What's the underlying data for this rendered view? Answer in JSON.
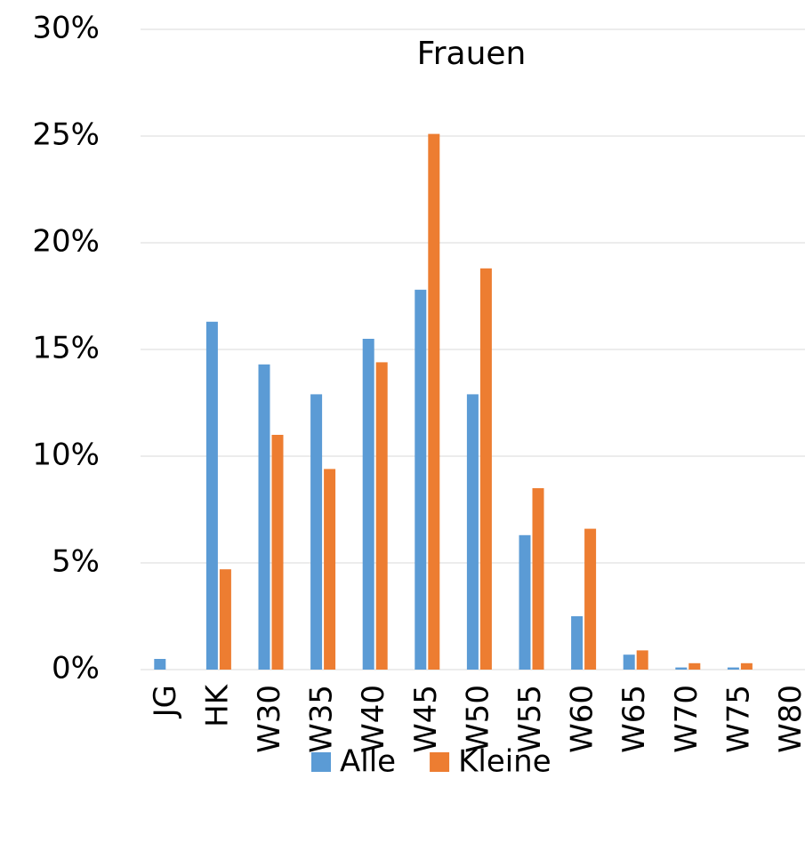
{
  "chart_data": {
    "type": "bar",
    "title": "Frauen",
    "categories": [
      "JG",
      "HK",
      "W30",
      "W35",
      "W40",
      "W45",
      "W50",
      "W55",
      "W60",
      "W65",
      "W70",
      "W75",
      "W80"
    ],
    "series": [
      {
        "name": "Alle",
        "color": "#5b9bd5",
        "values": [
          0.5,
          16.3,
          14.3,
          12.9,
          15.5,
          17.8,
          12.9,
          6.3,
          2.5,
          0.7,
          0.1,
          0.1,
          0
        ]
      },
      {
        "name": "Kleine",
        "color": "#ed7d31",
        "values": [
          0,
          4.7,
          11.0,
          9.4,
          14.4,
          25.1,
          18.8,
          8.5,
          6.6,
          0.9,
          0.3,
          0.3,
          0
        ]
      }
    ],
    "ylim": [
      0,
      30
    ],
    "yticks": [
      {
        "value": 0,
        "label": "0%"
      },
      {
        "value": 5,
        "label": "5%"
      },
      {
        "value": 10,
        "label": "10%"
      },
      {
        "value": 15,
        "label": "15%"
      },
      {
        "value": 20,
        "label": "20%"
      },
      {
        "value": 25,
        "label": "25%"
      },
      {
        "value": 30,
        "label": "30%"
      }
    ],
    "grid": true,
    "legend": "bottom"
  }
}
